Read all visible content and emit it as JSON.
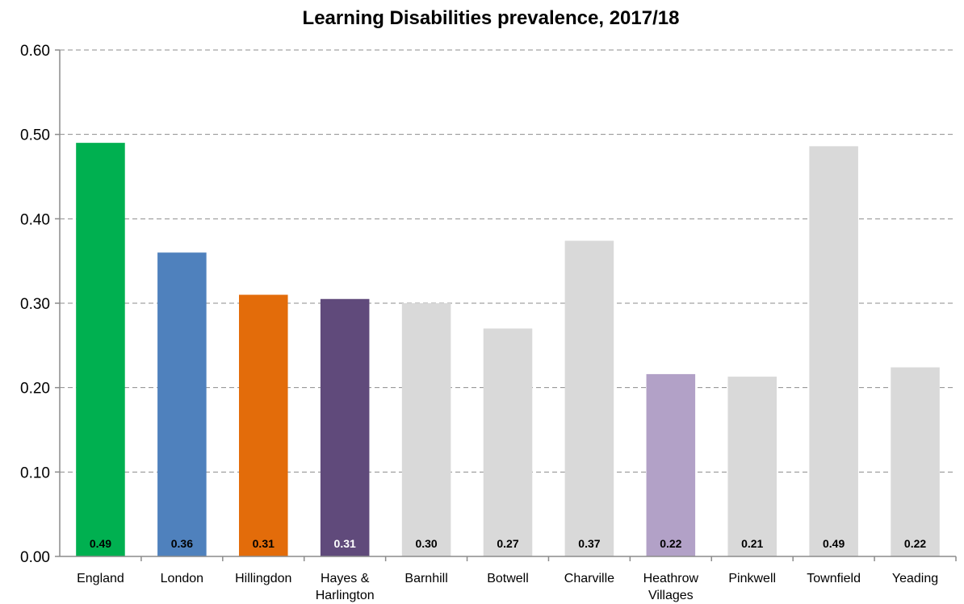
{
  "chart_data": {
    "type": "bar",
    "title": "Learning Disabilities prevalence, 2017/18",
    "xlabel": "",
    "ylabel": "",
    "ylim": [
      0,
      0.6
    ],
    "y_ticks": [
      "0.00",
      "0.10",
      "0.20",
      "0.30",
      "0.40",
      "0.50",
      "0.60"
    ],
    "grid": true,
    "categories": [
      "England",
      "London",
      "Hillingdon",
      "Hayes & Harlington",
      "Barnhill",
      "Botwell",
      "Charville",
      "Heathrow Villages",
      "Pinkwell",
      "Townfield",
      "Yeading"
    ],
    "values": [
      0.49,
      0.36,
      0.31,
      0.305,
      0.3,
      0.27,
      0.374,
      0.216,
      0.213,
      0.486,
      0.224
    ],
    "data_labels": [
      "0.49",
      "0.36",
      "0.31",
      "0.31",
      "0.30",
      "0.27",
      "0.37",
      "0.22",
      "0.21",
      "0.49",
      "0.22"
    ],
    "colors": [
      "#00b050",
      "#4f81bd",
      "#e36c0a",
      "#604a7b",
      "#d9d9d9",
      "#d9d9d9",
      "#d9d9d9",
      "#b2a1c7",
      "#d9d9d9",
      "#d9d9d9",
      "#d9d9d9"
    ],
    "label_colors": [
      "#000000",
      "#000000",
      "#000000",
      "#ffffff",
      "#000000",
      "#000000",
      "#000000",
      "#000000",
      "#000000",
      "#000000",
      "#000000"
    ]
  }
}
